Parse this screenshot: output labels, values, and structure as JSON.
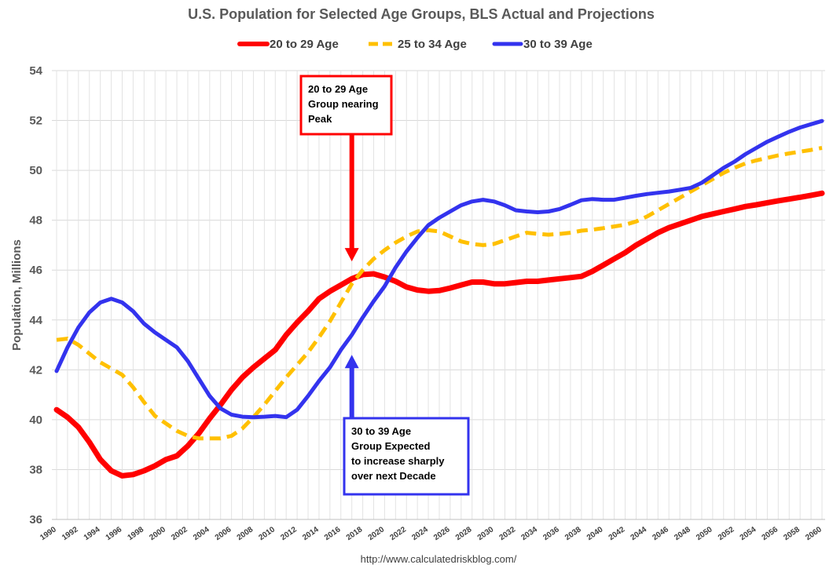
{
  "chart_data": {
    "type": "line",
    "title": "U.S. Population for Selected Age Groups, BLS Actual and Projections",
    "ylabel": "Population, Millions",
    "xlabel": "",
    "source": "http://www.calculatedriskblog.com/",
    "ylim": [
      36,
      54
    ],
    "yticks": [
      "36",
      "38",
      "40",
      "42",
      "44",
      "46",
      "48",
      "50",
      "52",
      "54"
    ],
    "xlim": [
      1990,
      2060
    ],
    "xticks": [
      "1990",
      "1992",
      "1994",
      "1996",
      "1998",
      "2000",
      "2002",
      "2004",
      "2006",
      "2008",
      "2010",
      "2012",
      "2014",
      "2016",
      "2018",
      "2020",
      "2022",
      "2024",
      "2026",
      "2028",
      "2030",
      "2032",
      "2034",
      "2036",
      "2038",
      "2040",
      "2042",
      "2044",
      "2046",
      "2048",
      "2050",
      "2052",
      "2054",
      "2056",
      "2058",
      "2060"
    ],
    "grid": true,
    "legend_position": "top",
    "series": [
      {
        "name": "20 to 29 Age",
        "color": "#ff0000",
        "style": "solid",
        "points": [
          [
            1990,
            40.4
          ],
          [
            1991,
            40.1
          ],
          [
            1992,
            39.7
          ],
          [
            1993,
            39.1
          ],
          [
            1994,
            38.4
          ],
          [
            1995,
            37.95
          ],
          [
            1996,
            37.75
          ],
          [
            1997,
            37.8
          ],
          [
            1998,
            37.95
          ],
          [
            1999,
            38.15
          ],
          [
            2000,
            38.4
          ],
          [
            2001,
            38.55
          ],
          [
            2002,
            38.95
          ],
          [
            2003,
            39.45
          ],
          [
            2004,
            40.05
          ],
          [
            2005,
            40.6
          ],
          [
            2006,
            41.2
          ],
          [
            2007,
            41.7
          ],
          [
            2008,
            42.1
          ],
          [
            2009,
            42.45
          ],
          [
            2010,
            42.8
          ],
          [
            2011,
            43.4
          ],
          [
            2012,
            43.9
          ],
          [
            2013,
            44.35
          ],
          [
            2014,
            44.85
          ],
          [
            2015,
            45.15
          ],
          [
            2016,
            45.4
          ],
          [
            2017,
            45.65
          ],
          [
            2018,
            45.82
          ],
          [
            2019,
            45.85
          ],
          [
            2020,
            45.72
          ],
          [
            2021,
            45.55
          ],
          [
            2022,
            45.32
          ],
          [
            2023,
            45.2
          ],
          [
            2024,
            45.15
          ],
          [
            2025,
            45.18
          ],
          [
            2026,
            45.28
          ],
          [
            2027,
            45.4
          ],
          [
            2028,
            45.52
          ],
          [
            2029,
            45.52
          ],
          [
            2030,
            45.45
          ],
          [
            2031,
            45.45
          ],
          [
            2032,
            45.5
          ],
          [
            2033,
            45.55
          ],
          [
            2034,
            45.55
          ],
          [
            2035,
            45.6
          ],
          [
            2036,
            45.65
          ],
          [
            2037,
            45.7
          ],
          [
            2038,
            45.75
          ],
          [
            2039,
            45.95
          ],
          [
            2040,
            46.2
          ],
          [
            2041,
            46.45
          ],
          [
            2042,
            46.7
          ],
          [
            2043,
            47.0
          ],
          [
            2044,
            47.25
          ],
          [
            2045,
            47.5
          ],
          [
            2046,
            47.7
          ],
          [
            2047,
            47.85
          ],
          [
            2048,
            48.0
          ],
          [
            2049,
            48.15
          ],
          [
            2050,
            48.25
          ],
          [
            2051,
            48.35
          ],
          [
            2052,
            48.45
          ],
          [
            2053,
            48.55
          ],
          [
            2054,
            48.62
          ],
          [
            2055,
            48.7
          ],
          [
            2056,
            48.78
          ],
          [
            2057,
            48.85
          ],
          [
            2058,
            48.92
          ],
          [
            2059,
            49.0
          ],
          [
            2060,
            49.08
          ]
        ]
      },
      {
        "name": "25 to 34 Age",
        "color": "#ffc000",
        "style": "dashed",
        "points": [
          [
            1990,
            43.2
          ],
          [
            1991,
            43.25
          ],
          [
            1992,
            43.0
          ],
          [
            1993,
            42.65
          ],
          [
            1994,
            42.3
          ],
          [
            1995,
            42.05
          ],
          [
            1996,
            41.8
          ],
          [
            1997,
            41.3
          ],
          [
            1998,
            40.7
          ],
          [
            1999,
            40.15
          ],
          [
            2000,
            39.85
          ],
          [
            2001,
            39.55
          ],
          [
            2002,
            39.35
          ],
          [
            2003,
            39.25
          ],
          [
            2004,
            39.25
          ],
          [
            2005,
            39.25
          ],
          [
            2006,
            39.35
          ],
          [
            2007,
            39.65
          ],
          [
            2008,
            40.1
          ],
          [
            2009,
            40.6
          ],
          [
            2010,
            41.15
          ],
          [
            2011,
            41.7
          ],
          [
            2012,
            42.2
          ],
          [
            2013,
            42.7
          ],
          [
            2014,
            43.3
          ],
          [
            2015,
            43.95
          ],
          [
            2016,
            44.7
          ],
          [
            2017,
            45.45
          ],
          [
            2018,
            46.0
          ],
          [
            2019,
            46.45
          ],
          [
            2020,
            46.8
          ],
          [
            2021,
            47.1
          ],
          [
            2022,
            47.35
          ],
          [
            2023,
            47.55
          ],
          [
            2024,
            47.6
          ],
          [
            2025,
            47.55
          ],
          [
            2026,
            47.35
          ],
          [
            2027,
            47.15
          ],
          [
            2028,
            47.05
          ],
          [
            2029,
            47.0
          ],
          [
            2030,
            47.05
          ],
          [
            2031,
            47.2
          ],
          [
            2032,
            47.35
          ],
          [
            2033,
            47.5
          ],
          [
            2034,
            47.45
          ],
          [
            2035,
            47.42
          ],
          [
            2036,
            47.45
          ],
          [
            2037,
            47.5
          ],
          [
            2038,
            47.58
          ],
          [
            2039,
            47.62
          ],
          [
            2040,
            47.68
          ],
          [
            2041,
            47.75
          ],
          [
            2042,
            47.82
          ],
          [
            2043,
            47.95
          ],
          [
            2044,
            48.15
          ],
          [
            2045,
            48.4
          ],
          [
            2046,
            48.65
          ],
          [
            2047,
            48.9
          ],
          [
            2048,
            49.15
          ],
          [
            2049,
            49.4
          ],
          [
            2050,
            49.65
          ],
          [
            2051,
            49.9
          ],
          [
            2052,
            50.1
          ],
          [
            2053,
            50.28
          ],
          [
            2054,
            50.4
          ],
          [
            2055,
            50.5
          ],
          [
            2056,
            50.6
          ],
          [
            2057,
            50.68
          ],
          [
            2058,
            50.75
          ],
          [
            2059,
            50.82
          ],
          [
            2060,
            50.9
          ]
        ]
      },
      {
        "name": "30 to 39 Age",
        "color": "#3333ee",
        "style": "solid",
        "points": [
          [
            1990,
            41.95
          ],
          [
            1991,
            42.9
          ],
          [
            1992,
            43.7
          ],
          [
            1993,
            44.3
          ],
          [
            1994,
            44.7
          ],
          [
            1995,
            44.85
          ],
          [
            1996,
            44.7
          ],
          [
            1997,
            44.35
          ],
          [
            1998,
            43.85
          ],
          [
            1999,
            43.5
          ],
          [
            2000,
            43.2
          ],
          [
            2001,
            42.9
          ],
          [
            2002,
            42.35
          ],
          [
            2003,
            41.65
          ],
          [
            2004,
            40.95
          ],
          [
            2005,
            40.45
          ],
          [
            2006,
            40.2
          ],
          [
            2007,
            40.12
          ],
          [
            2008,
            40.1
          ],
          [
            2009,
            40.12
          ],
          [
            2010,
            40.15
          ],
          [
            2011,
            40.1
          ],
          [
            2012,
            40.4
          ],
          [
            2013,
            40.95
          ],
          [
            2014,
            41.55
          ],
          [
            2015,
            42.1
          ],
          [
            2016,
            42.8
          ],
          [
            2017,
            43.4
          ],
          [
            2018,
            44.1
          ],
          [
            2019,
            44.75
          ],
          [
            2020,
            45.35
          ],
          [
            2021,
            46.1
          ],
          [
            2022,
            46.75
          ],
          [
            2023,
            47.3
          ],
          [
            2024,
            47.8
          ],
          [
            2025,
            48.1
          ],
          [
            2026,
            48.35
          ],
          [
            2027,
            48.6
          ],
          [
            2028,
            48.75
          ],
          [
            2029,
            48.82
          ],
          [
            2030,
            48.75
          ],
          [
            2031,
            48.6
          ],
          [
            2032,
            48.4
          ],
          [
            2033,
            48.35
          ],
          [
            2034,
            48.32
          ],
          [
            2035,
            48.35
          ],
          [
            2036,
            48.45
          ],
          [
            2037,
            48.62
          ],
          [
            2038,
            48.8
          ],
          [
            2039,
            48.85
          ],
          [
            2040,
            48.82
          ],
          [
            2041,
            48.82
          ],
          [
            2042,
            48.9
          ],
          [
            2043,
            48.98
          ],
          [
            2044,
            49.05
          ],
          [
            2045,
            49.1
          ],
          [
            2046,
            49.15
          ],
          [
            2047,
            49.22
          ],
          [
            2048,
            49.3
          ],
          [
            2049,
            49.5
          ],
          [
            2050,
            49.8
          ],
          [
            2051,
            50.1
          ],
          [
            2052,
            50.35
          ],
          [
            2053,
            50.65
          ],
          [
            2054,
            50.9
          ],
          [
            2055,
            51.15
          ],
          [
            2056,
            51.35
          ],
          [
            2057,
            51.55
          ],
          [
            2058,
            51.72
          ],
          [
            2059,
            51.85
          ],
          [
            2060,
            51.98
          ]
        ]
      }
    ],
    "annotations": [
      {
        "name": "annotation-20-29-peak",
        "lines": [
          "20 to 29 Age",
          "Group nearing",
          "Peak"
        ],
        "color": "#ff0000",
        "arrow_direction": "down",
        "arrow_target": [
          2017,
          46.35
        ]
      },
      {
        "name": "annotation-30-39-increase",
        "lines": [
          "30 to 39 Age",
          "Group Expected",
          "to increase sharply",
          "over next Decade"
        ],
        "color": "#3333ee",
        "arrow_direction": "up",
        "arrow_target": [
          2017,
          42.6
        ]
      }
    ]
  }
}
